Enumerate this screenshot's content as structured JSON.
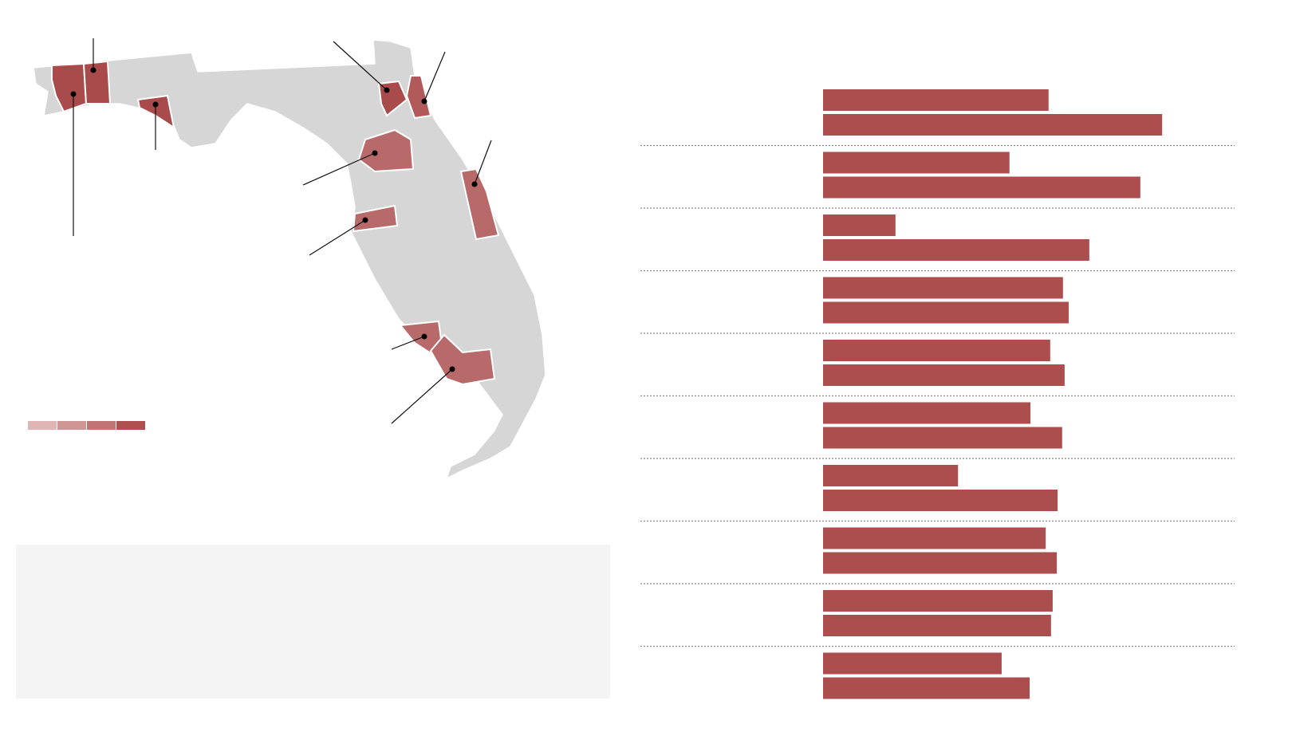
{
  "chart_data": {
    "type": "bar",
    "orientation": "horizontal",
    "categories": [
      null,
      null,
      null,
      null,
      null,
      null,
      null,
      null,
      null,
      null
    ],
    "series": [
      {
        "color": "#ad4e4e",
        "values": [
          54.8,
          45.3,
          17.6,
          58.3,
          55.2,
          50.4,
          32.8,
          54.1,
          55.8,
          43.4
        ]
      },
      {
        "color": "#ad4e4e",
        "values": [
          82.4,
          77.1,
          64.7,
          59.7,
          58.7,
          58.1,
          57.0,
          56.8,
          55.4,
          50.2
        ]
      }
    ],
    "xlim": [
      0,
      100
    ]
  }
}
